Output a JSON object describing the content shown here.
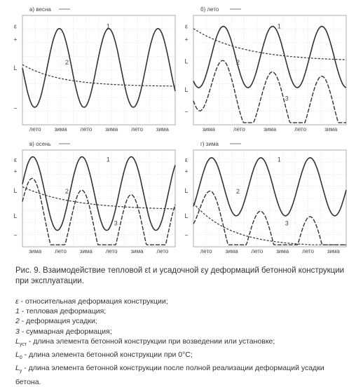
{
  "panels": [
    {
      "title": "а) весна",
      "y_labels": [
        "ε",
        "+",
        "L",
        "−"
      ],
      "curve_labels": [
        "1",
        "2"
      ],
      "x_labels": [
        "лето",
        "зима",
        "лето",
        "зима",
        "лето",
        "зима"
      ]
    },
    {
      "title": "б) лето",
      "y_labels": [
        "ε",
        "+",
        "L",
        "L",
        "−"
      ],
      "curve_labels": [
        "1",
        "2",
        "3"
      ],
      "x_labels": [
        "зима",
        "лето",
        "зима",
        "лето",
        "зима"
      ]
    },
    {
      "title": "в) осень",
      "y_labels": [
        "ε",
        "+",
        "L",
        "L",
        "−"
      ],
      "curve_labels": [
        "1",
        "2",
        "3"
      ],
      "x_labels": [
        "зима",
        "лето",
        "зима",
        "лето",
        "зима",
        "лето"
      ]
    },
    {
      "title": "г) зима",
      "y_labels": [
        "ε",
        "+",
        "L",
        "L",
        "−"
      ],
      "curve_labels": [
        "1",
        "2",
        "3"
      ],
      "x_labels": [
        "лето",
        "зима",
        "лето",
        "зима",
        "лето",
        "зима"
      ]
    }
  ],
  "caption": "Рис. 9. Взаимодействие тепловой εt и усадочной εу деформаций бетонной конструкции при эксплуатации.",
  "legend": [
    {
      "symbol": "ε",
      "sub": "",
      "text": " - относительная деформация конструкции;"
    },
    {
      "symbol": "1",
      "sub": "",
      "text": " - тепловая деформация;"
    },
    {
      "symbol": "2",
      "sub": "",
      "text": " - деформация усадки;"
    },
    {
      "symbol": "3",
      "sub": "",
      "text": " - суммарная деформация;"
    },
    {
      "symbol": "L",
      "sub": "уст",
      "text": " - длина элемента бетонной конструкции при возведении или установке;"
    },
    {
      "symbol": "L",
      "sub": "0",
      "text": " - длина элемента бетонной конструкции при 0°С;"
    },
    {
      "symbol": "L",
      "sub": "у",
      "text": " - длина элемента бетонной конструкции после полной реализации деформаций усадки бетона."
    }
  ]
}
